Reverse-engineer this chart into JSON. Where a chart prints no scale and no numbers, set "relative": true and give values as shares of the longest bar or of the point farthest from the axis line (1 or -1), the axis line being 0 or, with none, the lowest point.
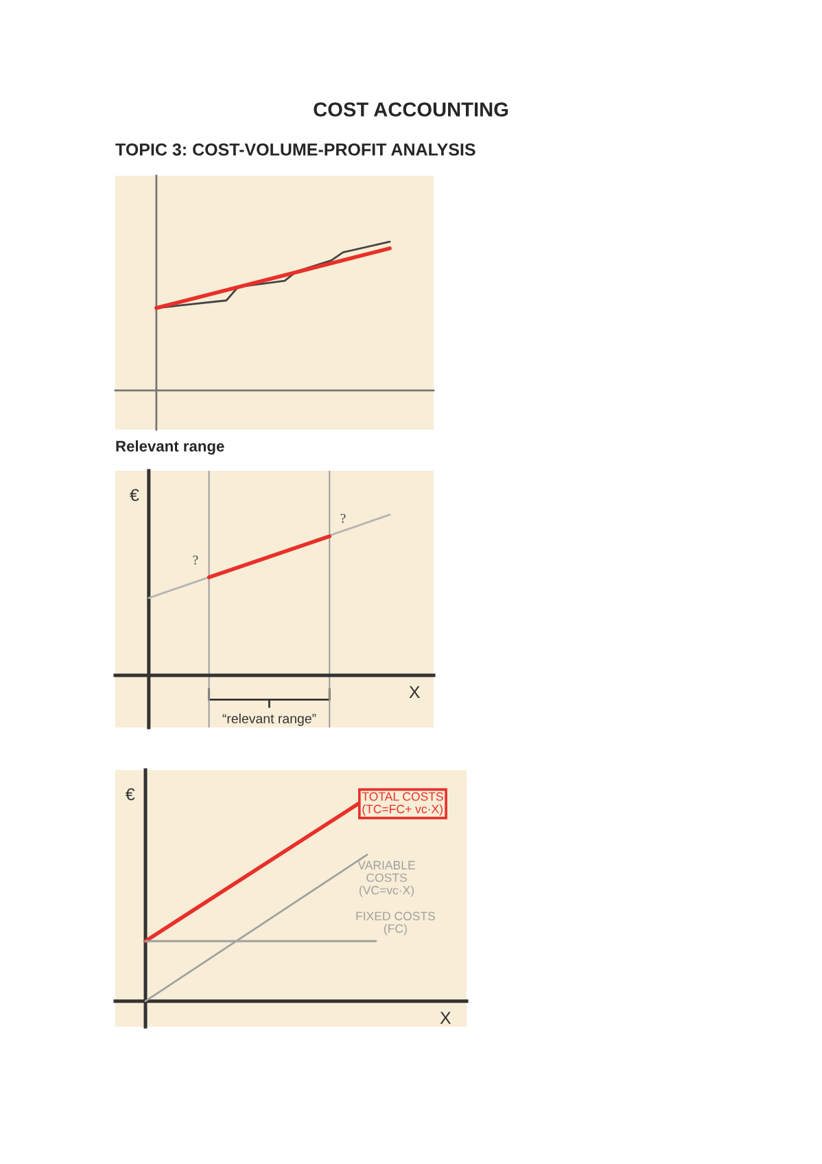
{
  "chart_data": [
    {
      "type": "line",
      "title": "COST ACCOUNTING",
      "subtitle": "TOPIC 3: COST-VOLUME-PROFIT ANALYSIS",
      "relative": true,
      "categories": [
        null,
        null,
        null,
        null,
        null,
        null,
        null,
        null,
        null,
        null,
        null,
        null,
        null,
        null,
        null,
        null,
        null,
        null,
        null,
        null,
        null
      ],
      "series": [
        {
          "color": "#444444",
          "values": [
            0.554,
            null,
            null,
            null,
            null,
            null,
            0.605,
            0.695,
            null,
            null,
            null,
            0.737,
            0.799,
            null,
            null,
            0.874,
            0.928,
            null,
            null,
            null,
            1.0
          ]
        },
        {
          "color": "#e8302a",
          "values": [
            0.554,
            null,
            null,
            null,
            null,
            null,
            null,
            null,
            null,
            null,
            null,
            null,
            null,
            null,
            null,
            null,
            null,
            null,
            null,
            null,
            0.955
          ]
        }
      ]
    },
    {
      "type": "line",
      "title": "Relevant range",
      "xlabel": "X",
      "ylabel": "€",
      "relative": true,
      "categories": [
        null,
        null,
        null,
        null,
        null,
        null,
        null,
        null,
        null
      ],
      "series": [
        {
          "color": "#b4b4b4",
          "values": [
            0.481,
            null,
            null,
            null,
            null,
            null,
            null,
            null,
            1.0
          ]
        },
        {
          "color": "#e8302a",
          "values": [
            null,
            null,
            0.61,
            null,
            null,
            null,
            0.865,
            null,
            null
          ]
        }
      ],
      "annotations": [
        "?",
        "?",
        "“relevant range”"
      ]
    },
    {
      "type": "line",
      "xlabel": "X",
      "ylabel": "€",
      "relative": true,
      "categories": [
        null,
        null,
        null,
        null,
        null,
        null,
        null,
        null,
        null,
        null,
        null,
        null,
        null,
        null,
        null,
        null,
        null,
        null,
        null,
        null,
        null,
        null,
        null,
        null,
        null,
        null,
        null
      ],
      "series": [
        {
          "name": "TOTAL COSTS\n(TC=FC+ vc·X)",
          "color": "#e8302a",
          "values": [
            0.304,
            null,
            null,
            null,
            null,
            null,
            null,
            null,
            null,
            null,
            null,
            null,
            null,
            null,
            null,
            null,
            null,
            null,
            null,
            null,
            null,
            null,
            null,
            null,
            1.0,
            null,
            null
          ]
        },
        {
          "name": "VARIABLE\nCOSTS\n(VC=vc·X)",
          "color": "#a0a0a0",
          "values": [
            0,
            null,
            null,
            null,
            null,
            null,
            null,
            null,
            null,
            null,
            null,
            null,
            null,
            null,
            null,
            null,
            null,
            null,
            null,
            null,
            null,
            null,
            null,
            null,
            null,
            0.742,
            null
          ]
        },
        {
          "name": "FIXED COSTS\n(FC)",
          "color": "#a0a0a0",
          "values": [
            0.304,
            null,
            null,
            null,
            null,
            null,
            null,
            null,
            null,
            null,
            null,
            null,
            null,
            null,
            null,
            null,
            null,
            null,
            null,
            null,
            null,
            null,
            null,
            null,
            null,
            null,
            0.304
          ]
        }
      ]
    }
  ]
}
